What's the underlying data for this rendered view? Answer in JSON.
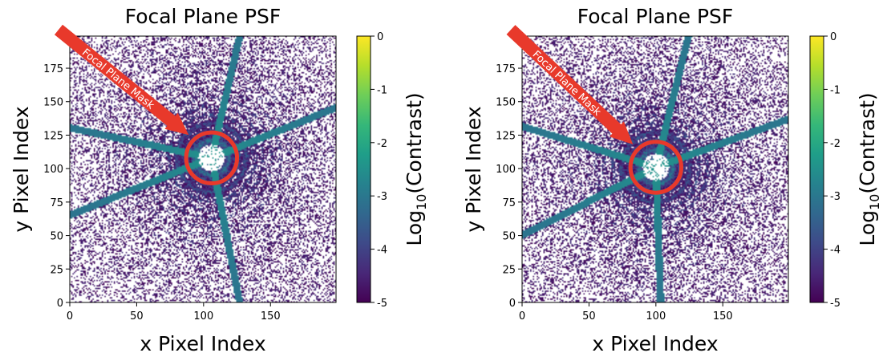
{
  "colors": {
    "arrow": "#e8392b",
    "mask_ring": "#e8392b",
    "background_pixel": "#ffffff",
    "colormap": [
      "#440154",
      "#482878",
      "#3e4a89",
      "#31688e",
      "#26828e",
      "#1f9e89",
      "#35b779",
      "#6ece58",
      "#b5de2b",
      "#fde725"
    ]
  },
  "chart_data": [
    {
      "type": "heatmap",
      "title": "Focal Plane PSF",
      "xlabel": "x Pixel Index",
      "ylabel": "y Pixel Index",
      "xlim": [
        0,
        199
      ],
      "ylim": [
        0,
        199
      ],
      "xticks": [
        0,
        50,
        100,
        150
      ],
      "yticks": [
        0,
        25,
        50,
        75,
        100,
        125,
        150,
        175
      ],
      "colorbar": {
        "label_prefix": "Log",
        "label_sub": "10",
        "label_suffix": "(Contrast)",
        "range": [
          -5,
          0
        ],
        "ticks": [
          0,
          -1,
          -2,
          -3,
          -4,
          -5
        ]
      },
      "mask": {
        "label": "Focal Plane Mask",
        "center": [
          106,
          108
        ],
        "radius": 10
      },
      "spokes_deg": [
        22,
        77,
        168,
        202,
        281
      ],
      "ring_spacing": 6.5,
      "seed": 7
    },
    {
      "type": "heatmap",
      "title": "Focal Plane PSF",
      "xlabel": "x Pixel Index",
      "ylabel": "y Pixel Index",
      "xlim": [
        0,
        199
      ],
      "ylim": [
        0,
        199
      ],
      "xticks": [
        0,
        50,
        100,
        150
      ],
      "yticks": [
        0,
        25,
        50,
        75,
        100,
        125,
        150,
        175
      ],
      "colorbar": {
        "label_prefix": "Log",
        "label_sub": "10",
        "label_suffix": "(Contrast)",
        "range": [
          -5,
          0
        ],
        "ticks": [
          0,
          -1,
          -2,
          -3,
          -4,
          -5
        ]
      },
      "mask": {
        "label": "Focal Plane Mask",
        "center": [
          100,
          101
        ],
        "radius": 10
      },
      "spokes_deg": [
        20,
        76,
        163,
        207,
        272
      ],
      "ring_spacing": 6.5,
      "seed": 19
    }
  ]
}
